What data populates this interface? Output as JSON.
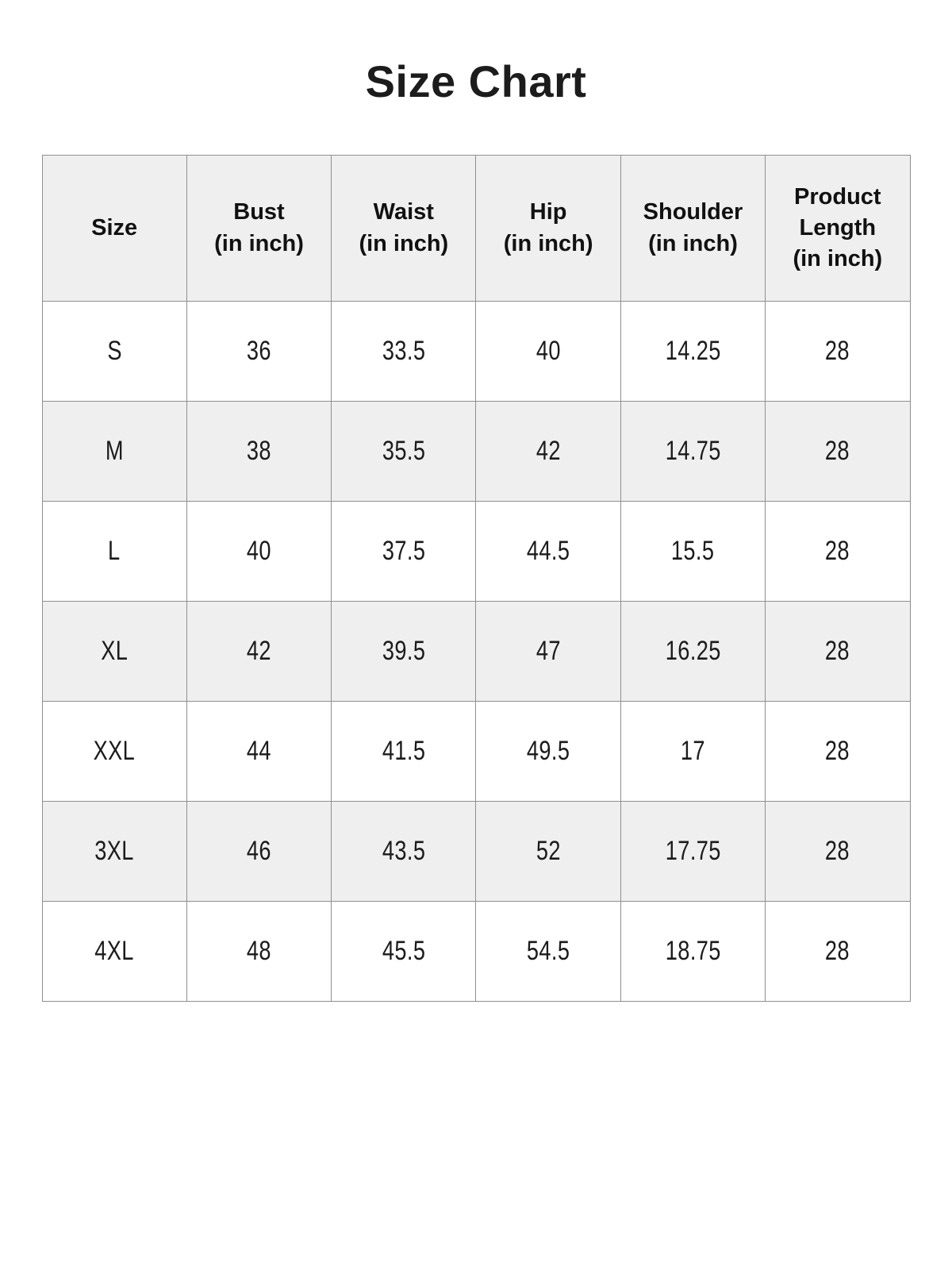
{
  "page": {
    "title": "Size Chart"
  },
  "colors": {
    "background": "#ffffff",
    "header_bg": "#efefef",
    "alt_row_bg": "#efefef",
    "border": "#8f8f8f",
    "text": "#1b1b1b"
  },
  "table": {
    "headers": [
      {
        "name": "Size",
        "unit": ""
      },
      {
        "name": "Bust",
        "unit": "(in inch)"
      },
      {
        "name": "Waist",
        "unit": "(in inch)"
      },
      {
        "name": "Hip",
        "unit": "(in inch)"
      },
      {
        "name": "Shoulder",
        "unit": "(in inch)"
      },
      {
        "name": "Product Length",
        "unit": "(in inch)"
      }
    ],
    "rows": [
      [
        "S",
        "36",
        "33.5",
        "40",
        "14.25",
        "28"
      ],
      [
        "M",
        "38",
        "35.5",
        "42",
        "14.75",
        "28"
      ],
      [
        "L",
        "40",
        "37.5",
        "44.5",
        "15.5",
        "28"
      ],
      [
        "XL",
        "42",
        "39.5",
        "47",
        "16.25",
        "28"
      ],
      [
        "XXL",
        "44",
        "41.5",
        "49.5",
        "17",
        "28"
      ],
      [
        "3XL",
        "46",
        "43.5",
        "52",
        "17.75",
        "28"
      ],
      [
        "4XL",
        "48",
        "45.5",
        "54.5",
        "18.75",
        "28"
      ]
    ]
  }
}
